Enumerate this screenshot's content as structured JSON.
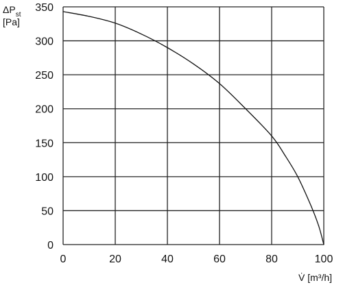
{
  "chart_data": {
    "type": "line",
    "title": "",
    "ylabel": {
      "line1_main": "ΔP",
      "line1_sub": "st",
      "line2": "[Pa]"
    },
    "xlabel": "V̇ [m³/h]",
    "xlim": [
      0,
      100
    ],
    "ylim": [
      0,
      350
    ],
    "xticks": [
      "0",
      "20",
      "40",
      "60",
      "80",
      "100"
    ],
    "yticks": [
      "0",
      "50",
      "100",
      "150",
      "200",
      "250",
      "300",
      "350"
    ],
    "grid": true,
    "series": [
      {
        "x": [
          0,
          10,
          20,
          30,
          40,
          50,
          60,
          70,
          80,
          85,
          90,
          95,
          98,
          100
        ],
        "y": [
          343,
          336,
          326,
          310,
          290,
          266,
          237,
          200,
          160,
          132,
          100,
          58,
          28,
          0
        ]
      }
    ]
  }
}
